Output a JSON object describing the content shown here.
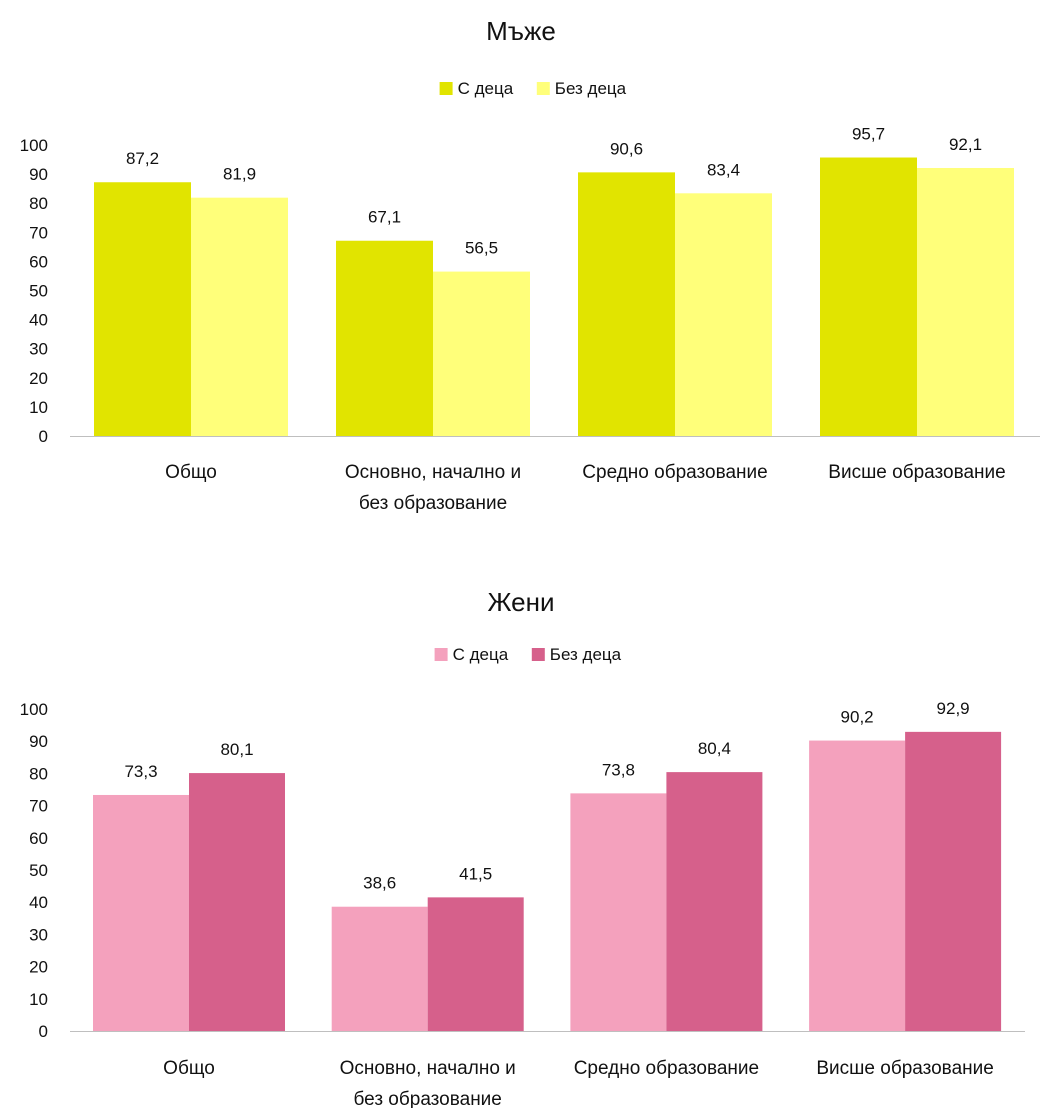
{
  "chart_data": [
    {
      "type": "bar",
      "title": "Мъже",
      "categories": [
        [
          "Общо"
        ],
        [
          "Основно, начално и",
          "без образование"
        ],
        [
          "Средно образование"
        ],
        [
          "Висше образование"
        ]
      ],
      "series": [
        {
          "name": "С деца",
          "color": "#e1e400",
          "values": [
            87.2,
            67.1,
            90.6,
            95.7
          ],
          "labels": [
            "87,2",
            "67,1",
            "90,6",
            "95,7"
          ]
        },
        {
          "name": "Без деца",
          "color": "#ffff7a",
          "values": [
            81.9,
            56.5,
            83.4,
            92.1
          ],
          "labels": [
            "81,9",
            "56,5",
            "83,4",
            "92,1"
          ]
        }
      ],
      "ylim": [
        0,
        100
      ],
      "yticks": [
        "0",
        "10",
        "20",
        "30",
        "40",
        "50",
        "60",
        "70",
        "80",
        "90",
        "100"
      ],
      "legend": "top",
      "grid": false
    },
    {
      "type": "bar",
      "title": "Жени",
      "categories": [
        [
          "Общо"
        ],
        [
          "Основно, начално и",
          "без образование"
        ],
        [
          "Средно образование"
        ],
        [
          "Висше образование"
        ]
      ],
      "series": [
        {
          "name": "С деца",
          "color": "#f4a1bd",
          "values": [
            73.3,
            38.6,
            73.8,
            90.2
          ],
          "labels": [
            "73,3",
            "38,6",
            "73,8",
            "90,2"
          ]
        },
        {
          "name": "Без деца",
          "color": "#d6608b",
          "values": [
            80.1,
            41.5,
            80.4,
            92.9
          ],
          "labels": [
            "80,1",
            "41,5",
            "80,4",
            "92,9"
          ]
        }
      ],
      "ylim": [
        0,
        100
      ],
      "yticks": [
        "0",
        "10",
        "20",
        "30",
        "40",
        "50",
        "60",
        "70",
        "80",
        "90",
        "100"
      ],
      "legend": "top",
      "grid": false
    }
  ]
}
